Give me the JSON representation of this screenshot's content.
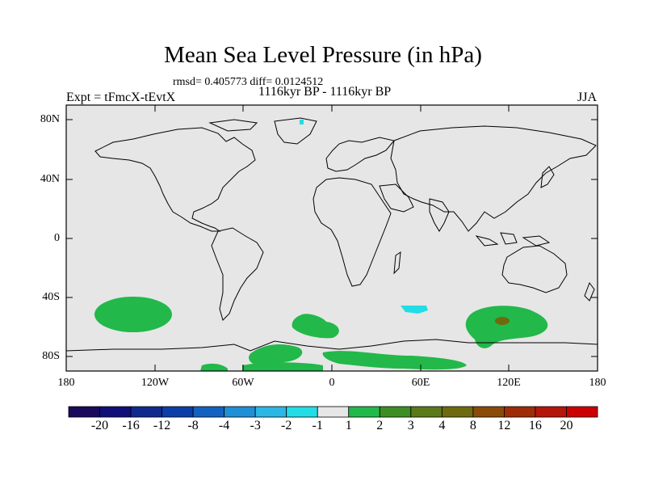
{
  "title": "Mean Sea Level Pressure (in hPa)",
  "stats": "rmsd= 0.405773 diff= 0.0124512",
  "period": "1116kyr BP - 1116kyr BP",
  "experiment": "Expt = tFmcX-tEvtX",
  "season": "JJA",
  "lat_ticks": [
    "80N",
    "40N",
    "0",
    "40S",
    "80S"
  ],
  "lon_ticks": [
    "180",
    "120W",
    "60W",
    "0",
    "60E",
    "120E",
    "180"
  ],
  "colorbar": {
    "labels": [
      "-20",
      "-16",
      "-12",
      "-8",
      "-4",
      "-3",
      "-2",
      "-1",
      "1",
      "2",
      "3",
      "4",
      "8",
      "12",
      "16",
      "20"
    ],
    "colors": [
      "#1a0a5c",
      "#101078",
      "#0f2a8c",
      "#0b3ea6",
      "#1462c0",
      "#1f8fd6",
      "#2bb6e4",
      "#22dde6",
      "#e6e6e6",
      "#23b84a",
      "#3d8f24",
      "#5b7a1a",
      "#6f6a10",
      "#8a4a08",
      "#9e2c06",
      "#b5160a",
      "#cc0000"
    ]
  },
  "chart_data": {
    "type": "heatmap",
    "title": "Mean Sea Level Pressure (in hPa)",
    "units": "hPa",
    "xrange": [
      -180,
      180
    ],
    "yrange": [
      -90,
      90
    ],
    "background_class": "-1 to 1",
    "anomaly_regions": [
      {
        "name": "south-pacific-high",
        "class": "1 to 2",
        "lon": -130,
        "lat": -45
      },
      {
        "name": "south-atlantic-high",
        "class": "1 to 2",
        "lon": -20,
        "lat": -55
      },
      {
        "name": "indian-ocean-high",
        "class": "1 to 2",
        "lon": 115,
        "lat": -55
      },
      {
        "name": "indian-ocean-core",
        "class": "4 to 8",
        "lon": 115,
        "lat": -54
      },
      {
        "name": "southern-ocean-low",
        "class": "-2 to -1",
        "lon": 55,
        "lat": -46
      },
      {
        "name": "antarctic-coast-band",
        "class": "1 to 2",
        "lon": 20,
        "lat": -80
      },
      {
        "name": "greenland-low",
        "class": "-2 to -1",
        "lon": -25,
        "lat": 80
      }
    ]
  }
}
